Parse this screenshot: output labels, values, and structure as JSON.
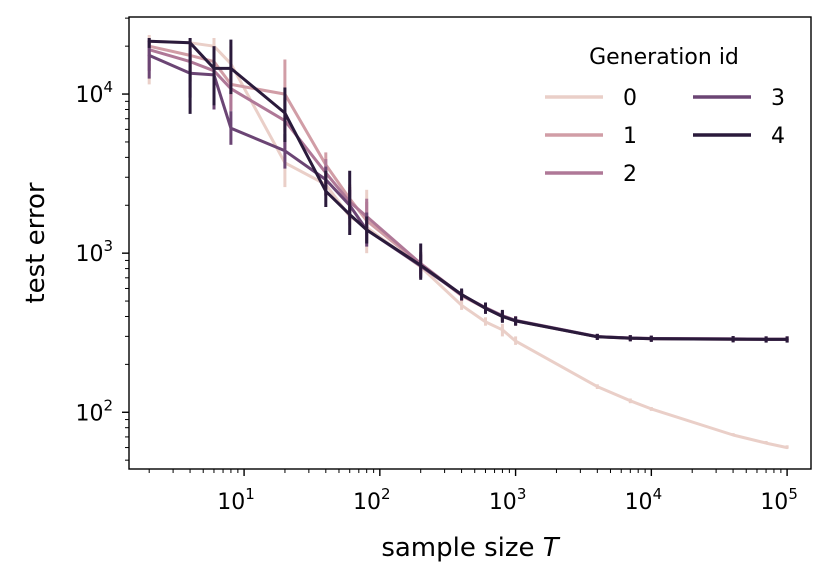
{
  "chart_data": {
    "type": "line",
    "title": "",
    "xlabel_text": "sample size ",
    "xlabel_var": "T",
    "ylabel": "test error",
    "xscale": "log",
    "yscale": "log",
    "xlim": [
      1.42,
      150000
    ],
    "ylim": [
      44,
      30500
    ],
    "x_ticks": [
      {
        "value": 10,
        "base": "10",
        "exp": "1"
      },
      {
        "value": 100,
        "base": "10",
        "exp": "2"
      },
      {
        "value": 1000,
        "base": "10",
        "exp": "3"
      },
      {
        "value": 10000,
        "base": "10",
        "exp": "4"
      },
      {
        "value": 100000,
        "base": "10",
        "exp": "5"
      }
    ],
    "y_ticks": [
      {
        "value": 100,
        "base": "10",
        "exp": "2"
      },
      {
        "value": 1000,
        "base": "10",
        "exp": "3"
      },
      {
        "value": 10000,
        "base": "10",
        "exp": "4"
      }
    ],
    "legend": {
      "title": "Generation id",
      "position": "top-right",
      "columns": 2
    },
    "series": [
      {
        "name": "0",
        "color": "#eacfc8",
        "x": [
          2,
          4,
          6,
          8,
          20,
          40,
          60,
          80,
          200,
          400,
          600,
          800,
          1000,
          4000,
          7000,
          10000,
          40000,
          70000,
          100000
        ],
        "y": [
          21500,
          21000,
          20000,
          15500,
          3700,
          2700,
          1700,
          1450,
          820,
          470,
          370,
          330,
          280,
          145,
          118,
          105,
          72,
          64,
          60
        ],
        "err_low": [
          11500,
          19000,
          17000,
          12000,
          2600,
          2300,
          1500,
          1000,
          700,
          440,
          350,
          300,
          265,
          140,
          114,
          102,
          71,
          63,
          59
        ],
        "err_high": [
          23500,
          22500,
          22500,
          20000,
          4500,
          3300,
          2000,
          2500,
          950,
          500,
          395,
          360,
          300,
          150,
          122,
          108,
          74,
          66,
          62
        ]
      },
      {
        "name": "1",
        "color": "#d19da6",
        "x": [
          2,
          4,
          6,
          8,
          20,
          40,
          60,
          80,
          200,
          400,
          600,
          800,
          1000,
          4000,
          7000,
          10000,
          40000,
          70000,
          100000
        ],
        "y": [
          20000,
          17500,
          16000,
          11500,
          10000,
          3600,
          2200,
          1600,
          850,
          540,
          450,
          400,
          375,
          298,
          292,
          290,
          288,
          287,
          287
        ],
        "err_low": [
          14000,
          13000,
          11500,
          8000,
          5800,
          2900,
          1800,
          1200,
          720,
          500,
          420,
          370,
          350,
          285,
          280,
          278,
          276,
          275,
          275
        ],
        "err_high": [
          22500,
          21000,
          20000,
          15000,
          16500,
          4300,
          2700,
          2100,
          1000,
          580,
          480,
          430,
          400,
          310,
          304,
          302,
          300,
          299,
          299
        ]
      },
      {
        "name": "2",
        "color": "#af7897",
        "x": [
          2,
          4,
          6,
          8,
          20,
          40,
          60,
          80,
          200,
          400,
          600,
          800,
          1000,
          4000,
          7000,
          10000,
          40000,
          70000,
          100000
        ],
        "y": [
          19000,
          16000,
          14000,
          10800,
          6800,
          3200,
          2100,
          1700,
          860,
          545,
          455,
          405,
          378,
          299,
          293,
          291,
          289,
          288,
          288
        ],
        "err_low": [
          14000,
          12000,
          10500,
          7800,
          4500,
          2600,
          1750,
          1350,
          740,
          505,
          425,
          375,
          355,
          286,
          281,
          279,
          277,
          276,
          276
        ],
        "err_high": [
          22000,
          19500,
          18000,
          14000,
          9500,
          3900,
          2600,
          2200,
          1020,
          585,
          485,
          435,
          402,
          311,
          305,
          303,
          301,
          300,
          300
        ]
      },
      {
        "name": "3",
        "color": "#6b4574",
        "x": [
          2,
          4,
          6,
          8,
          20,
          40,
          60,
          80,
          200,
          400,
          600,
          800,
          1000,
          4000,
          7000,
          10000,
          40000,
          70000,
          100000
        ],
        "y": [
          17500,
          13500,
          13200,
          6100,
          4400,
          2900,
          2000,
          1400,
          830,
          548,
          452,
          402,
          377,
          299,
          293,
          291,
          289,
          288,
          288
        ],
        "err_low": [
          12500,
          9500,
          8000,
          4800,
          3400,
          2300,
          1650,
          1100,
          700,
          508,
          422,
          372,
          352,
          286,
          281,
          279,
          277,
          276,
          276
        ],
        "err_high": [
          21500,
          18500,
          17500,
          7800,
          5600,
          3500,
          2500,
          1800,
          980,
          588,
          482,
          432,
          400,
          311,
          305,
          303,
          301,
          300,
          300
        ]
      },
      {
        "name": "4",
        "color": "#2a1a3b",
        "x": [
          2,
          4,
          6,
          8,
          20,
          40,
          60,
          80,
          200,
          400,
          600,
          800,
          1000,
          4000,
          7000,
          10000,
          40000,
          70000,
          100000
        ],
        "y": [
          21500,
          21000,
          14500,
          14500,
          7600,
          2450,
          1750,
          1400,
          840,
          550,
          450,
          400,
          375,
          298,
          292,
          290,
          288,
          287,
          287
        ],
        "err_low": [
          19500,
          7500,
          8500,
          10000,
          5000,
          1950,
          1300,
          1150,
          680,
          505,
          415,
          365,
          350,
          285,
          279,
          277,
          275,
          274,
          274
        ],
        "err_high": [
          22500,
          22500,
          20000,
          22000,
          11000,
          3300,
          3300,
          1700,
          1150,
          600,
          490,
          440,
          400,
          311,
          305,
          303,
          301,
          300,
          300
        ]
      }
    ]
  }
}
